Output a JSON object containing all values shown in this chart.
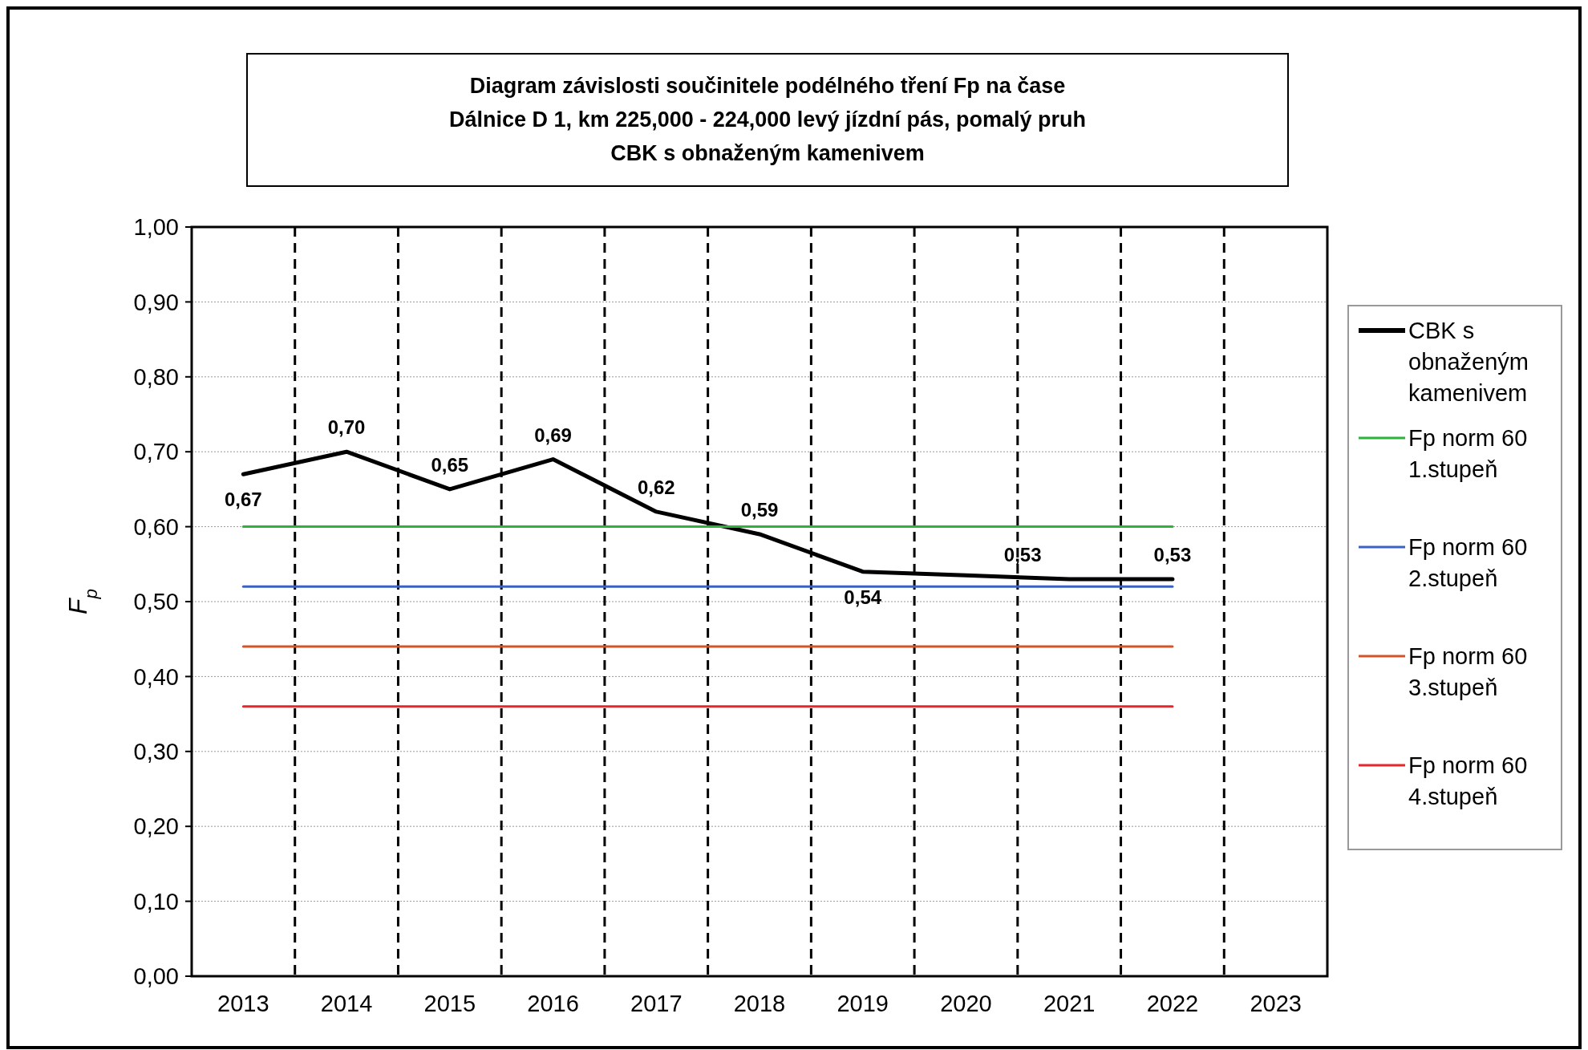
{
  "chart_data": {
    "type": "line",
    "title": "Diagram závislosti součinitele podélného tření Fp na čase",
    "subtitle": "Dálnice D 1, km 225,000 - 224,000  levý jízdní pás, pomalý pruh\nCBK s obnaženým kamenivem",
    "ylabel": "F$_{p}$",
    "categories": [
      "2013",
      "2014",
      "2015",
      "2016",
      "2017",
      "2018",
      "2019",
      "2020",
      "2021",
      "2022",
      "2023"
    ],
    "series": [
      {
        "name": "CBK s obnaženým kamenivem",
        "color": "#000000",
        "values": [
          0.67,
          0.7,
          0.65,
          0.69,
          0.62,
          0.59,
          0.54,
          0.535,
          0.53,
          0.53,
          null
        ],
        "value_labels": [
          "0,67",
          "0,70",
          "0,65",
          "0,69",
          "0,62",
          "0,59",
          "0,54",
          null,
          "0,53",
          "0,53",
          null
        ]
      },
      {
        "name": "Fp norm 60 1.stupeň",
        "color": "#2db33a",
        "values": [
          0.6,
          0.6,
          0.6,
          0.6,
          0.6,
          0.6,
          0.6,
          0.6,
          0.6,
          0.6,
          null
        ]
      },
      {
        "name": "Fp norm 60 2.stupeň",
        "color": "#3a62c4",
        "values": [
          0.52,
          0.52,
          0.52,
          0.52,
          0.52,
          0.52,
          0.52,
          0.52,
          0.52,
          0.52,
          null
        ]
      },
      {
        "name": "Fp norm 60 3.stupeň",
        "color": "#d4542a",
        "values": [
          0.44,
          0.44,
          0.44,
          0.44,
          0.44,
          0.44,
          0.44,
          0.44,
          0.44,
          0.44,
          null
        ]
      },
      {
        "name": "Fp norm 60 4.stupeň",
        "color": "#e8252a",
        "values": [
          0.36,
          0.36,
          0.36,
          0.36,
          0.36,
          0.36,
          0.36,
          0.36,
          0.36,
          0.36,
          null
        ]
      }
    ],
    "ylim": [
      0,
      1
    ],
    "yticks": [
      {
        "value": 0,
        "label": "0,00"
      },
      {
        "value": 0.1,
        "label": "0,10"
      },
      {
        "value": 0.2,
        "label": "0,20"
      },
      {
        "value": 0.3,
        "label": "0,30"
      },
      {
        "value": 0.4,
        "label": "0,40"
      },
      {
        "value": 0.5,
        "label": "0,50"
      },
      {
        "value": 0.6,
        "label": "0,60"
      },
      {
        "value": 0.7,
        "label": "0,70"
      },
      {
        "value": 0.8,
        "label": "0,80"
      },
      {
        "value": 0.9,
        "label": "0,90"
      },
      {
        "value": 1,
        "label": "1,00"
      }
    ],
    "grid": true,
    "legend": "right",
    "marker": "none",
    "line_style": "solid"
  }
}
